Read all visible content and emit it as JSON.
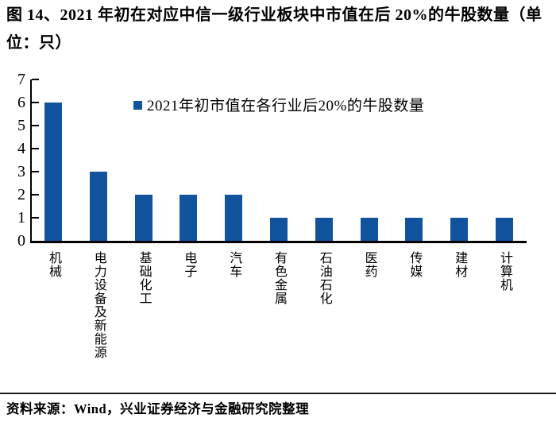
{
  "title": "图 14、2021 年初在对应中信一级行业板块中市值在后 20%的牛股数量（单位：只）",
  "source": "资料来源：Wind，兴业证券经济与金融研究院整理",
  "colors": {
    "bar": "#11549D",
    "axis": "#000000"
  },
  "chart_data": {
    "type": "bar",
    "title": "",
    "legend": [
      "2021年初市值在各行业后20%的牛股数量"
    ],
    "legend_position": "top-center-inside",
    "categories": [
      "机械",
      "电力设备及新能源",
      "基础化工",
      "电子",
      "汽车",
      "有色金属",
      "石油石化",
      "医药",
      "传媒",
      "建材",
      "计算机"
    ],
    "values": [
      6,
      3,
      2,
      2,
      2,
      1,
      1,
      1,
      1,
      1,
      1
    ],
    "xlabel": "",
    "ylabel": "",
    "ylim": [
      0,
      7
    ],
    "yticks": [
      0,
      1,
      2,
      3,
      4,
      5,
      6,
      7
    ],
    "grid": false,
    "bar_color": "#11549D"
  }
}
